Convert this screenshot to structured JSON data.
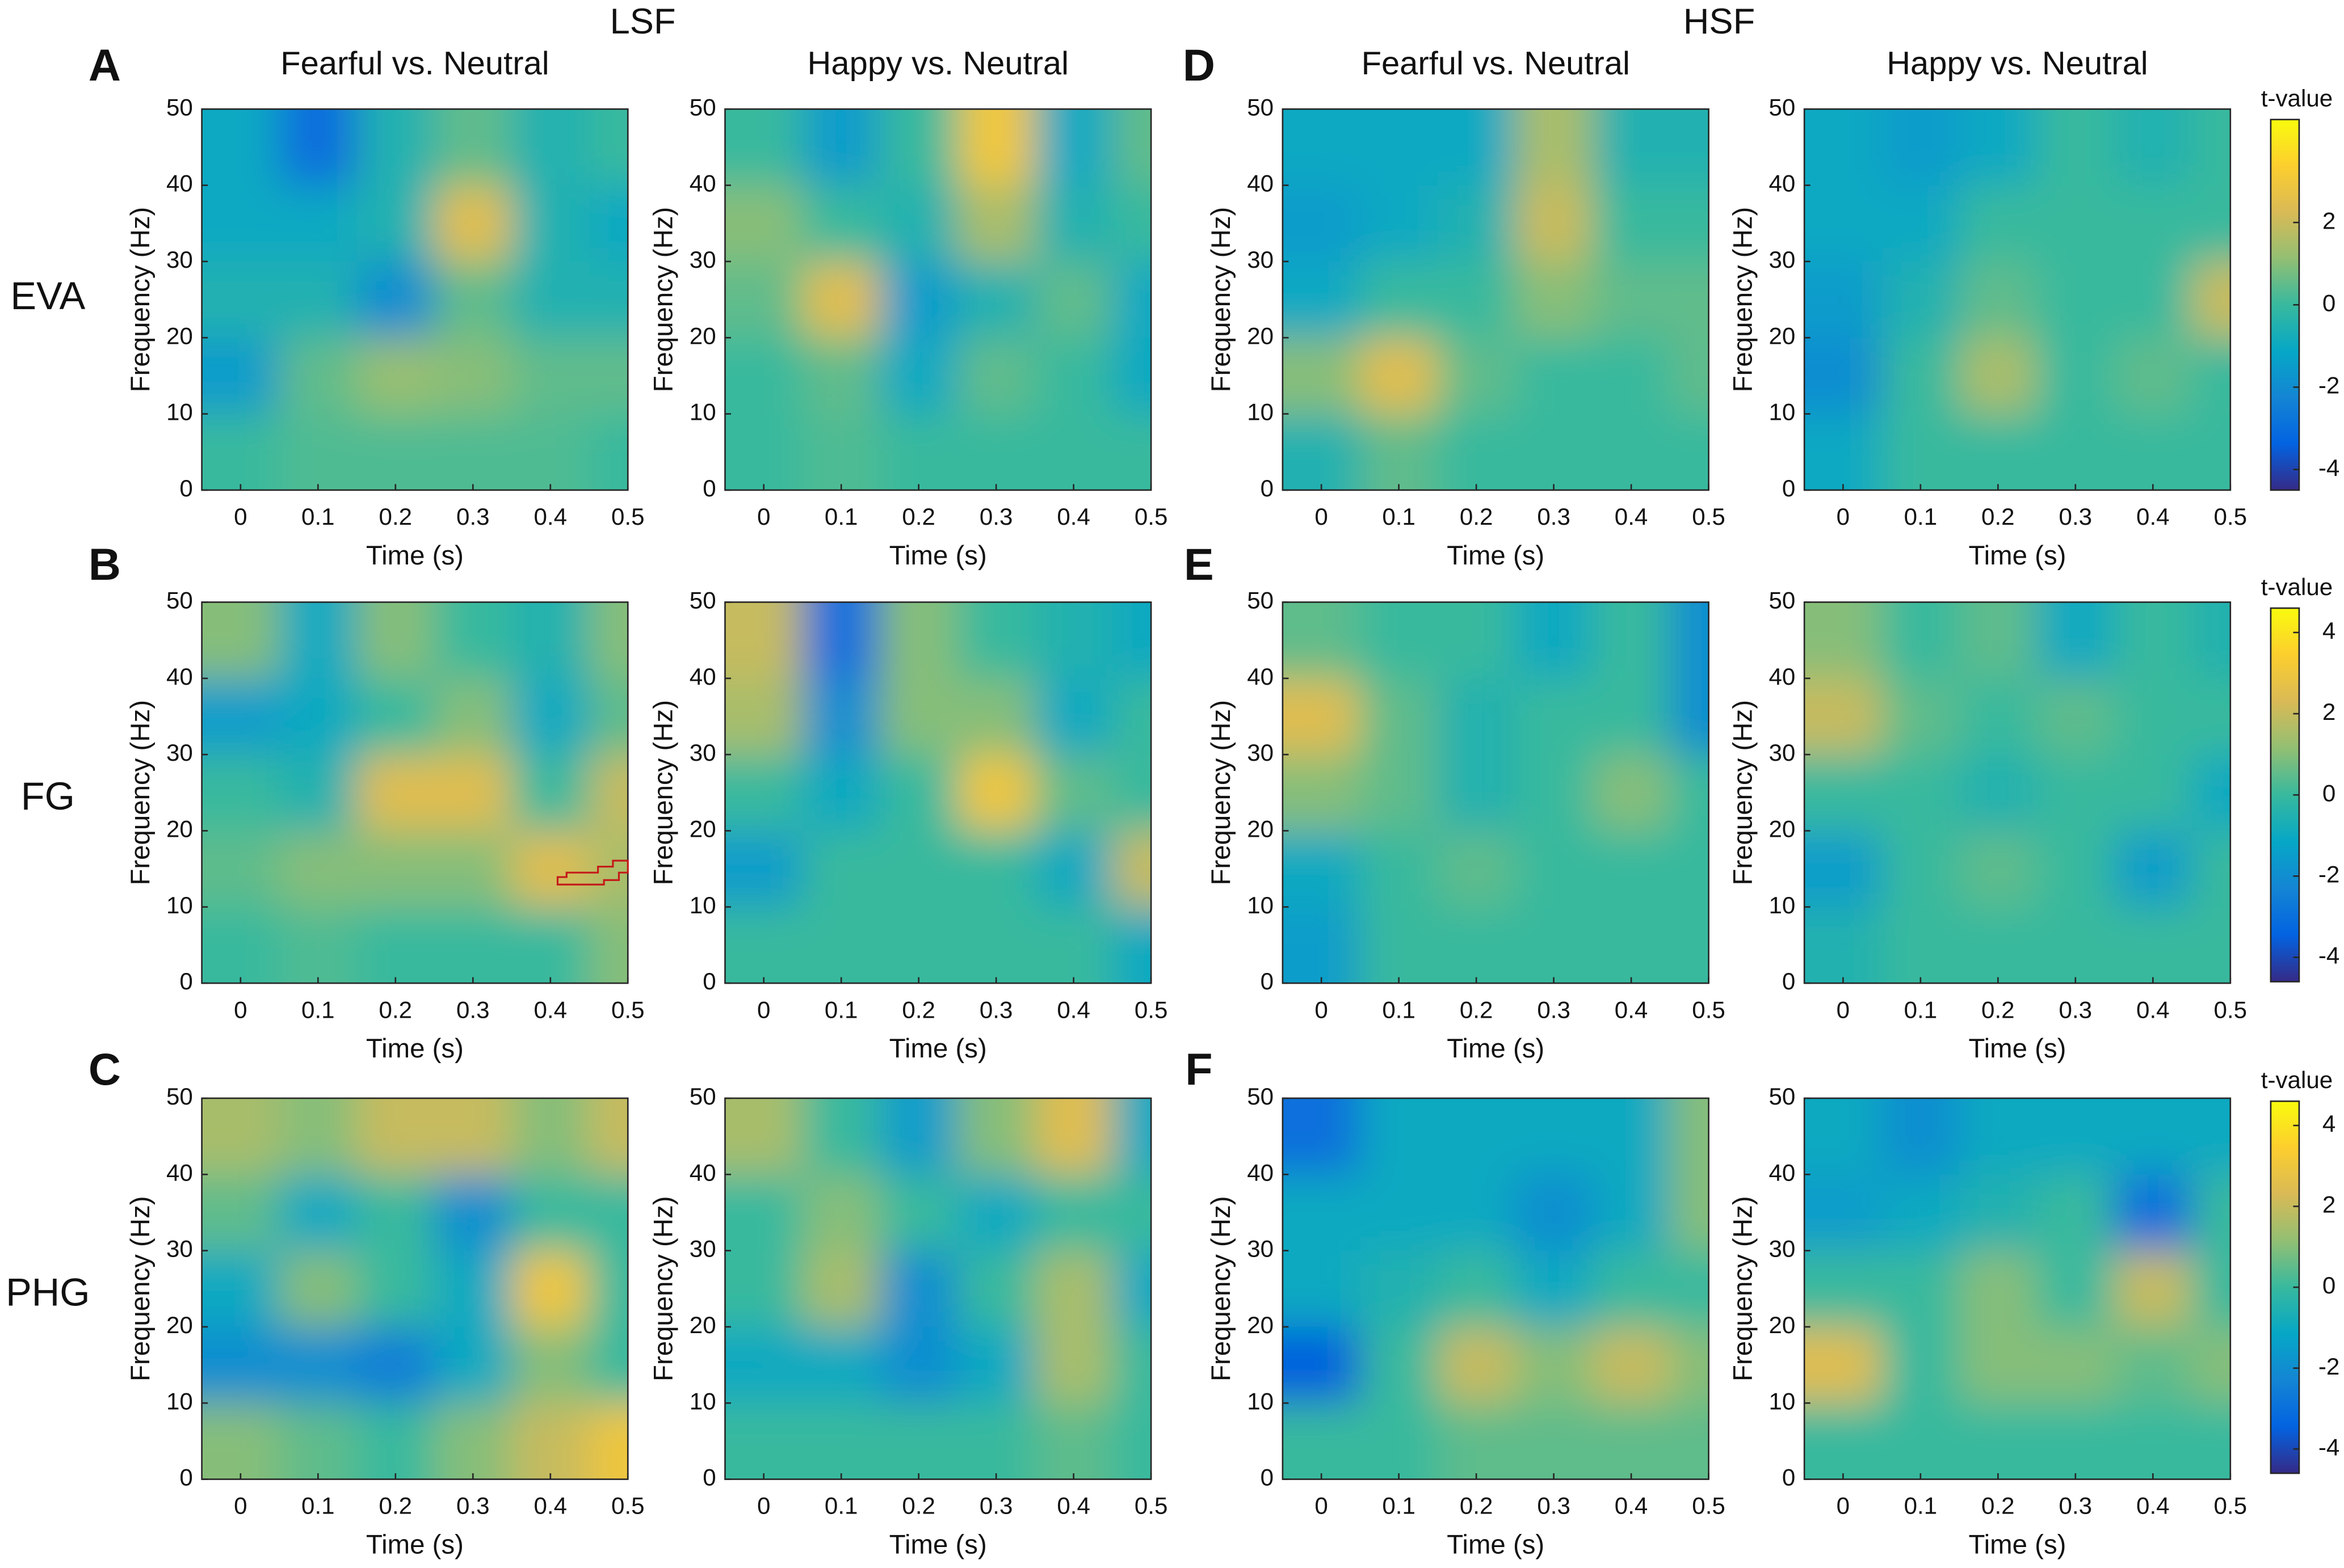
{
  "figure": {
    "groups": [
      "LSF",
      "HSF"
    ],
    "rows": [
      "EVA",
      "FG",
      "PHG"
    ],
    "panels": [
      "A",
      "B",
      "C",
      "D",
      "E",
      "F"
    ],
    "colorbars": [
      {
        "label": "t-value",
        "colormap": "parula",
        "lim": [
          -4.5,
          4.5
        ],
        "ticks": [
          -4,
          -2,
          0,
          2
        ]
      },
      {
        "label": "t-value",
        "colormap": "parula",
        "lim": [
          -4.6,
          4.6
        ],
        "ticks": [
          -4,
          -2,
          0,
          2,
          4
        ]
      },
      {
        "label": "t-value",
        "colormap": "parula",
        "lim": [
          -4.6,
          4.6
        ],
        "ticks": [
          -4,
          -2,
          0,
          2,
          4
        ]
      }
    ]
  },
  "chart_data": [
    {
      "type": "heatmap",
      "title": "Fearful vs. Neutral",
      "xlabel": "Time (s)",
      "ylabel": "Frequency (Hz)",
      "xlim": [
        -0.05,
        0.5
      ],
      "ylim": [
        0,
        50
      ],
      "xticks": [
        0,
        0.1,
        0.2,
        0.3,
        0.4,
        0.5
      ],
      "yticks": [
        0,
        10,
        20,
        30,
        40,
        50
      ],
      "x": [
        0,
        0.1,
        0.2,
        0.3,
        0.4,
        0.5
      ],
      "y": [
        5,
        15,
        25,
        35,
        45
      ],
      "z": [
        [
          0,
          0.3,
          0.3,
          0.3,
          0.3,
          0
        ],
        [
          -1.5,
          0.5,
          1.2,
          1,
          0.5,
          0.5
        ],
        [
          -0.5,
          -0.5,
          -2,
          0.5,
          -0.5,
          -0.5
        ],
        [
          -1,
          -1,
          -0.5,
          2.5,
          -0.5,
          -1
        ],
        [
          -1,
          -3,
          -0.5,
          0.5,
          -0.5,
          0
        ]
      ]
    },
    {
      "type": "heatmap",
      "title": "Happy vs. Neutral",
      "xlabel": "Time (s)",
      "ylabel": "Frequency (Hz)",
      "xlim": [
        -0.05,
        0.5
      ],
      "ylim": [
        0,
        50
      ],
      "xticks": [
        0,
        0.1,
        0.2,
        0.3,
        0.4,
        0.5
      ],
      "yticks": [
        0,
        10,
        20,
        30,
        40,
        50
      ],
      "x": [
        0,
        0.1,
        0.2,
        0.3,
        0.4,
        0.5
      ],
      "y": [
        5,
        15,
        25,
        35,
        45
      ],
      "z": [
        [
          0,
          0.3,
          0,
          0,
          0,
          0
        ],
        [
          0,
          0.5,
          -1,
          0.5,
          0,
          -1
        ],
        [
          0.5,
          2.5,
          -1.5,
          -0.5,
          0.5,
          -1
        ],
        [
          1,
          0,
          -0.5,
          1.5,
          -0.5,
          0
        ],
        [
          0,
          -1.5,
          0,
          3,
          -1,
          0.5
        ]
      ]
    },
    {
      "type": "heatmap",
      "title": "Fearful vs. Neutral",
      "xlabel": "Time (s)",
      "ylabel": "Frequency (Hz)",
      "xlim": [
        -0.05,
        0.5
      ],
      "ylim": [
        0,
        50
      ],
      "xticks": [
        0,
        0.1,
        0.2,
        0.3,
        0.4,
        0.5
      ],
      "yticks": [
        0,
        10,
        20,
        30,
        40,
        50
      ],
      "x": [
        0,
        0.1,
        0.2,
        0.3,
        0.4,
        0.5
      ],
      "y": [
        5,
        15,
        25,
        35,
        45
      ],
      "z": [
        [
          -0.5,
          0.5,
          0,
          0,
          0,
          0
        ],
        [
          1,
          2.5,
          0.5,
          0,
          0,
          0.5
        ],
        [
          -1,
          0,
          0,
          1,
          0.5,
          0.5
        ],
        [
          -1.5,
          -1,
          -0.5,
          2,
          0,
          0
        ],
        [
          -1,
          -1,
          -1,
          1.5,
          -0.5,
          -0.5
        ]
      ]
    },
    {
      "type": "heatmap",
      "title": "Happy vs. Neutral",
      "xlabel": "Time (s)",
      "ylabel": "Frequency (Hz)",
      "xlim": [
        -0.05,
        0.5
      ],
      "ylim": [
        0,
        50
      ],
      "xticks": [
        0,
        0.1,
        0.2,
        0.3,
        0.4,
        0.5
      ],
      "yticks": [
        0,
        10,
        20,
        30,
        40,
        50
      ],
      "x": [
        0,
        0.1,
        0.2,
        0.3,
        0.4,
        0.5
      ],
      "y": [
        5,
        15,
        25,
        35,
        45
      ],
      "z": [
        [
          -1,
          0,
          0,
          0,
          0,
          0
        ],
        [
          -2,
          0,
          1.5,
          0,
          0.5,
          0
        ],
        [
          -1.5,
          -0.5,
          0.5,
          0,
          0,
          2
        ],
        [
          -1,
          -1,
          0,
          0,
          0,
          0
        ],
        [
          -1,
          -1.5,
          -1,
          0,
          -0.5,
          0
        ]
      ]
    },
    {
      "type": "heatmap",
      "xlabel": "Time (s)",
      "ylabel": "Frequency (Hz)",
      "xlim": [
        -0.05,
        0.5
      ],
      "ylim": [
        0,
        50
      ],
      "xticks": [
        0,
        0.1,
        0.2,
        0.3,
        0.4,
        0.5
      ],
      "yticks": [
        0,
        10,
        20,
        30,
        40,
        50
      ],
      "x": [
        0,
        0.1,
        0.2,
        0.3,
        0.4,
        0.5
      ],
      "y": [
        5,
        15,
        25,
        35,
        45
      ],
      "z": [
        [
          0,
          0.3,
          0,
          0,
          0,
          1
        ],
        [
          0.5,
          1,
          1,
          1,
          2.5,
          1.5
        ],
        [
          0,
          -0.5,
          2.5,
          2.5,
          0,
          2
        ],
        [
          -1.5,
          -1,
          0,
          1,
          -1,
          0.5
        ],
        [
          1,
          -1,
          1,
          0,
          -0.5,
          1
        ]
      ]
    },
    {
      "type": "heatmap",
      "xlabel": "Time (s)",
      "ylabel": "Frequency (Hz)",
      "xlim": [
        -0.05,
        0.5
      ],
      "ylim": [
        0,
        50
      ],
      "xticks": [
        0,
        0.1,
        0.2,
        0.3,
        0.4,
        0.5
      ],
      "yticks": [
        0,
        10,
        20,
        30,
        40,
        50
      ],
      "x": [
        0,
        0.1,
        0.2,
        0.3,
        0.4,
        0.5
      ],
      "y": [
        5,
        15,
        25,
        35,
        45
      ],
      "z": [
        [
          0,
          0,
          0,
          0,
          0,
          -1
        ],
        [
          -1.5,
          0,
          0,
          0,
          -1,
          2
        ],
        [
          0,
          -1,
          0,
          3,
          0.5,
          0
        ],
        [
          1.5,
          -2,
          1,
          1,
          -1,
          0
        ],
        [
          2,
          -3,
          1,
          0,
          -0.5,
          -1
        ]
      ]
    },
    {
      "type": "heatmap",
      "xlabel": "Time (s)",
      "ylabel": "Frequency (Hz)",
      "xlim": [
        -0.05,
        0.5
      ],
      "ylim": [
        0,
        50
      ],
      "xticks": [
        0,
        0.1,
        0.2,
        0.3,
        0.4,
        0.5
      ],
      "yticks": [
        0,
        10,
        20,
        30,
        40,
        50
      ],
      "x": [
        0,
        0.1,
        0.2,
        0.3,
        0.4,
        0.5
      ],
      "y": [
        5,
        15,
        25,
        35,
        45
      ],
      "z": [
        [
          -1.5,
          0,
          0,
          0,
          0,
          0
        ],
        [
          -1,
          0,
          0.5,
          0,
          0,
          0
        ],
        [
          1,
          0.5,
          -0.5,
          0,
          1,
          0
        ],
        [
          2.5,
          0.5,
          -0.5,
          0,
          0,
          -2
        ],
        [
          0.5,
          0,
          0,
          -1,
          0,
          -2
        ]
      ]
    },
    {
      "type": "heatmap",
      "xlabel": "Time (s)",
      "ylabel": "Frequency (Hz)",
      "xlim": [
        -0.05,
        0.5
      ],
      "ylim": [
        0,
        50
      ],
      "xticks": [
        0,
        0.1,
        0.2,
        0.3,
        0.4,
        0.5
      ],
      "yticks": [
        0,
        10,
        20,
        30,
        40,
        50
      ],
      "x": [
        0,
        0.1,
        0.2,
        0.3,
        0.4,
        0.5
      ],
      "y": [
        5,
        15,
        25,
        35,
        45
      ],
      "z": [
        [
          -0.5,
          0,
          0,
          0,
          0,
          0
        ],
        [
          -1.5,
          0,
          0.5,
          0,
          -1.5,
          0
        ],
        [
          0,
          0,
          -0.5,
          0,
          0,
          -1
        ],
        [
          2,
          0.5,
          0,
          0.5,
          0,
          0
        ],
        [
          1,
          0,
          0.5,
          -1,
          0,
          -0.5
        ]
      ]
    },
    {
      "type": "heatmap",
      "xlabel": "Time (s)",
      "ylabel": "Frequency (Hz)",
      "xlim": [
        -0.05,
        0.5
      ],
      "ylim": [
        0,
        50
      ],
      "xticks": [
        0,
        0.1,
        0.2,
        0.3,
        0.4,
        0.5
      ],
      "yticks": [
        0,
        10,
        20,
        30,
        40,
        50
      ],
      "x": [
        0,
        0.1,
        0.2,
        0.3,
        0.4,
        0.5
      ],
      "y": [
        5,
        15,
        25,
        35,
        45
      ],
      "z": [
        [
          1,
          0.5,
          0,
          1,
          2,
          3
        ],
        [
          -2,
          -2,
          -2.5,
          -1,
          1,
          0
        ],
        [
          -1,
          1,
          0,
          -1,
          3,
          0
        ],
        [
          0.5,
          -1,
          0,
          -2,
          0,
          0
        ],
        [
          1.5,
          1,
          2,
          2,
          1,
          2
        ]
      ]
    },
    {
      "type": "heatmap",
      "xlabel": "Time (s)",
      "ylabel": "Frequency (Hz)",
      "xlim": [
        -0.05,
        0.5
      ],
      "ylim": [
        0,
        50
      ],
      "xticks": [
        0,
        0.1,
        0.2,
        0.3,
        0.4,
        0.5
      ],
      "yticks": [
        0,
        10,
        20,
        30,
        40,
        50
      ],
      "x": [
        0,
        0.1,
        0.2,
        0.3,
        0.4,
        0.5
      ],
      "y": [
        5,
        15,
        25,
        35,
        45
      ],
      "z": [
        [
          0,
          0,
          0,
          0,
          0.5,
          0
        ],
        [
          -1,
          -1,
          -2,
          -1,
          1.5,
          0
        ],
        [
          0,
          1.5,
          -2,
          0,
          1.5,
          -1
        ],
        [
          0,
          1,
          0,
          -1,
          0,
          0
        ],
        [
          1.5,
          0,
          -1.5,
          1,
          2.5,
          -1
        ]
      ]
    },
    {
      "type": "heatmap",
      "xlabel": "Time (s)",
      "ylabel": "Frequency (Hz)",
      "xlim": [
        -0.05,
        0.5
      ],
      "ylim": [
        0,
        50
      ],
      "xticks": [
        0,
        0.1,
        0.2,
        0.3,
        0.4,
        0.5
      ],
      "yticks": [
        0,
        10,
        20,
        30,
        40,
        50
      ],
      "x": [
        0,
        0.1,
        0.2,
        0.3,
        0.4,
        0.5
      ],
      "y": [
        5,
        15,
        25,
        35,
        45
      ],
      "z": [
        [
          0,
          0,
          0.5,
          0.5,
          0.5,
          0.5
        ],
        [
          -3.5,
          0,
          2,
          1,
          2,
          1
        ],
        [
          -1,
          -0.5,
          0,
          -1,
          0,
          0
        ],
        [
          -1,
          -1,
          -1,
          -2,
          -1,
          1
        ],
        [
          -3,
          -1,
          -1,
          -1,
          -1,
          1
        ]
      ]
    },
    {
      "type": "heatmap",
      "xlabel": "Time (s)",
      "ylabel": "Frequency (Hz)",
      "xlim": [
        -0.05,
        0.5
      ],
      "ylim": [
        0,
        50
      ],
      "xticks": [
        0,
        0.1,
        0.2,
        0.3,
        0.4,
        0.5
      ],
      "yticks": [
        0,
        10,
        20,
        30,
        40,
        50
      ],
      "x": [
        0,
        0.1,
        0.2,
        0.3,
        0.4,
        0.5
      ],
      "y": [
        5,
        15,
        25,
        35,
        45
      ],
      "z": [
        [
          0,
          0,
          0,
          0,
          0,
          0
        ],
        [
          2.5,
          0,
          1,
          1,
          0.5,
          1
        ],
        [
          0,
          0,
          1,
          0,
          2,
          0
        ],
        [
          -1.5,
          -1,
          -0.5,
          0,
          -3,
          0
        ],
        [
          -1,
          -2,
          -1,
          -1,
          -1,
          -1
        ]
      ]
    }
  ]
}
